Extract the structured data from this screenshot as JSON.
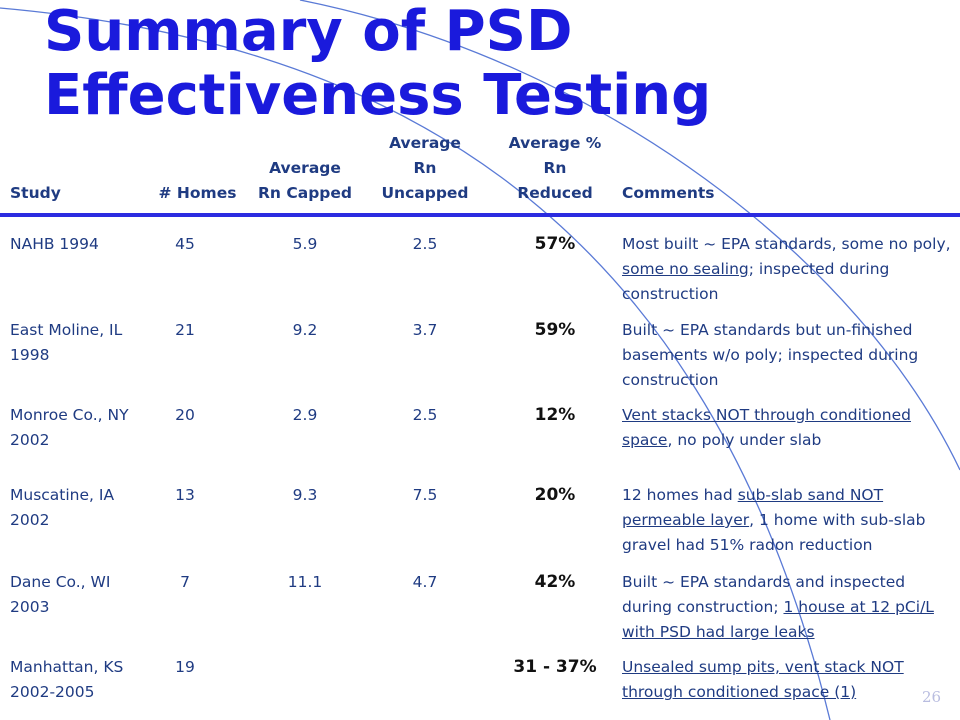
{
  "slide": {
    "title": "Summary of PSD Effectiveness Testing",
    "page_number": "26"
  },
  "colors": {
    "title": "#1a1adc",
    "text": "#1f3b82",
    "rule": "#2b2be0",
    "percent": "#111111",
    "arc": "#5a7ad6",
    "page_number": "#b9bde0"
  },
  "table": {
    "headers": {
      "study": "Study",
      "homes": "# Homes",
      "capped": "Average Rn Capped",
      "uncapped": "Average Rn Uncapped",
      "reduced": "Average % Rn Reduced",
      "comments": "Comments"
    },
    "rows": [
      {
        "study": "NAHB 1994",
        "homes": "45",
        "capped": "5.9",
        "uncapped": "2.5",
        "reduced": "57%",
        "comment": [
          {
            "text": "Most built ~ EPA standards, some no poly, ",
            "underline": false
          },
          {
            "text": "some no sealing",
            "underline": true
          },
          {
            "text": "; inspected during construction",
            "underline": false
          }
        ]
      },
      {
        "study": "East Moline, IL 1998",
        "homes": "21",
        "capped": "9.2",
        "uncapped": "3.7",
        "reduced": "59%",
        "comment": [
          {
            "text": "Built ~ EPA standards but un-finished basements w/o poly; inspected during construction",
            "underline": false
          }
        ]
      },
      {
        "study": "Monroe Co., NY 2002",
        "homes": "20",
        "capped": "2.9",
        "uncapped": "2.5",
        "reduced": "12%",
        "comment": [
          {
            "text": "Vent stacks NOT through conditioned space",
            "underline": true
          },
          {
            "text": ", no poly under slab",
            "underline": false
          }
        ]
      },
      {
        "study": "Muscatine, IA 2002",
        "homes": "13",
        "capped": "9.3",
        "uncapped": "7.5",
        "reduced": "20%",
        "comment": [
          {
            "text": "12 homes had ",
            "underline": false
          },
          {
            "text": "sub-slab sand NOT permeable layer",
            "underline": true
          },
          {
            "text": ", 1 home with sub-slab gravel had 51% radon reduction",
            "underline": false
          }
        ]
      },
      {
        "study": "Dane Co., WI 2003",
        "homes": "7",
        "capped": "11.1",
        "uncapped": "4.7",
        "reduced": "42%",
        "comment": [
          {
            "text": "Built ~ EPA standards and inspected during construction; ",
            "underline": false
          },
          {
            "text": "1 house at 12 pCi/L with PSD had large leaks",
            "underline": true
          }
        ]
      },
      {
        "study": "Manhattan, KS 2002-2005",
        "homes": "19",
        "capped": "",
        "uncapped": "",
        "reduced": "31 - 37%",
        "comment": [
          {
            "text": "Unsealed sump pits, vent stack NOT through conditioned space (1)",
            "underline": true
          }
        ]
      }
    ]
  }
}
